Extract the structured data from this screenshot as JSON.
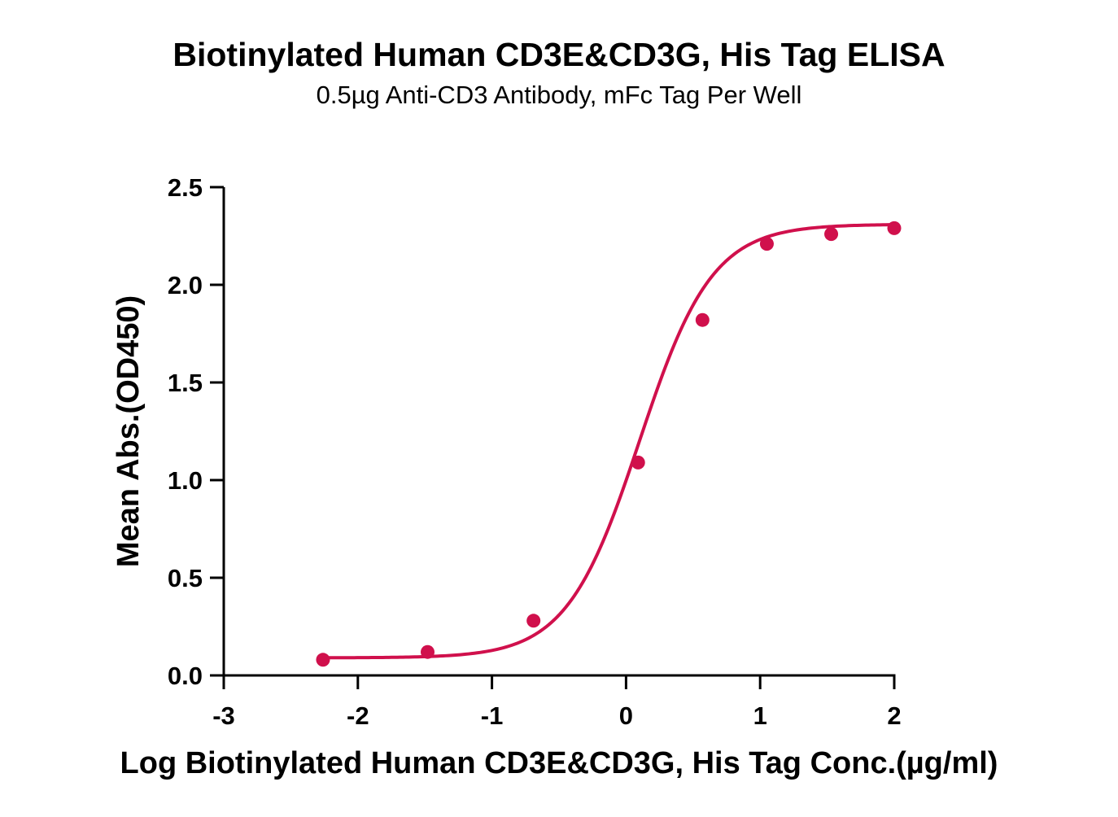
{
  "chart_data": {
    "type": "scatter",
    "title": "Biotinylated Human CD3E&CD3G, His Tag ELISA",
    "subtitle": "0.5µg Anti-CD3 Antibody, mFc Tag Per Well",
    "xlabel": "Log Biotinylated Human CD3E&CD3G, His Tag Conc.(µg/ml)",
    "ylabel": "Mean Abs.(OD450)",
    "xlim": [
      -3,
      2
    ],
    "ylim": [
      0,
      2.5
    ],
    "x_ticks": [
      -3,
      -2,
      -1,
      0,
      1,
      2
    ],
    "x_tick_labels": [
      "-3",
      "-2",
      "-1",
      "0",
      "1",
      "2"
    ],
    "y_ticks": [
      0,
      0.5,
      1.0,
      1.5,
      2.0,
      2.5
    ],
    "y_tick_labels": [
      "0.0",
      "0.5",
      "1.0",
      "1.5",
      "2.0",
      "2.5"
    ],
    "grid": false,
    "color": "#d0104c",
    "points": [
      {
        "x": -2.26,
        "y": 0.08
      },
      {
        "x": -1.48,
        "y": 0.12
      },
      {
        "x": -0.69,
        "y": 0.28
      },
      {
        "x": 0.09,
        "y": 1.09
      },
      {
        "x": 0.57,
        "y": 1.82
      },
      {
        "x": 1.05,
        "y": 2.21
      },
      {
        "x": 1.53,
        "y": 2.26
      },
      {
        "x": 2.0,
        "y": 2.29
      }
    ],
    "fit": {
      "type": "4PL",
      "bottom": 0.09,
      "top": 2.31,
      "logEC50": 0.1,
      "hill": 1.6
    }
  }
}
